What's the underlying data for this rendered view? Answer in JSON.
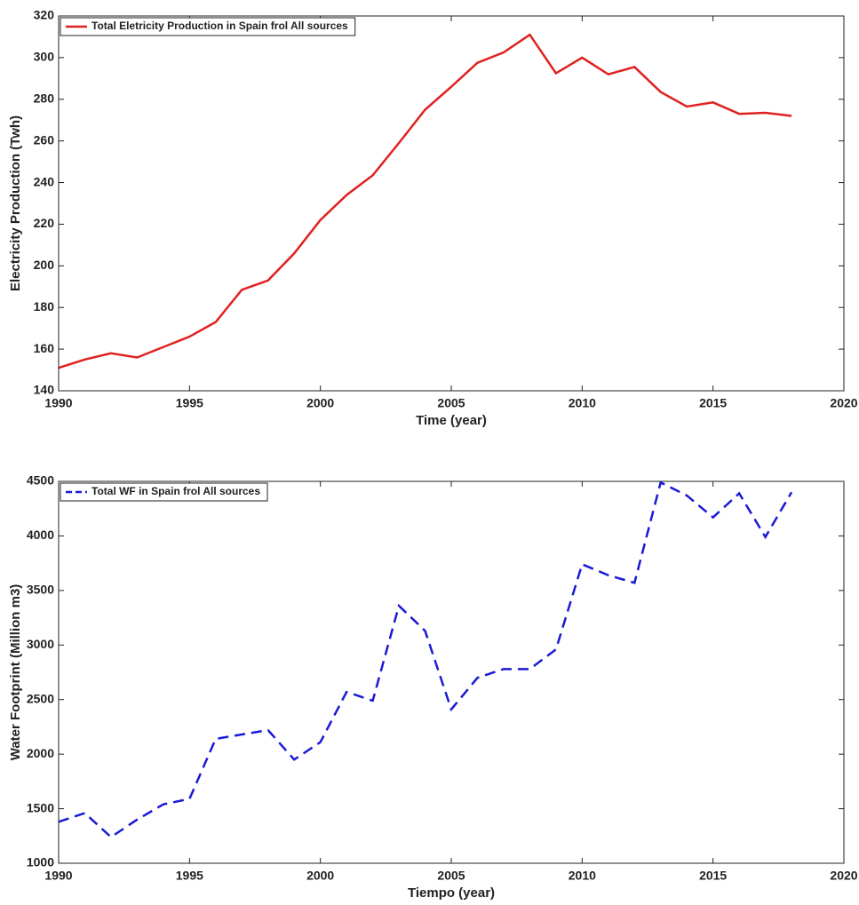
{
  "chart_data": [
    {
      "type": "line",
      "x": [
        1990,
        1991,
        1992,
        1993,
        1994,
        1995,
        1996,
        1997,
        1998,
        1999,
        2000,
        2001,
        2002,
        2003,
        2004,
        2005,
        2006,
        2007,
        2008,
        2009,
        2010,
        2011,
        2012,
        2013,
        2014,
        2015,
        2016,
        2017,
        2018
      ],
      "series": [
        {
          "name": "Total Eletricity Production in Spain frol All sources",
          "color": "#e02020",
          "dash": "solid",
          "values": [
            151,
            155,
            158,
            156,
            161,
            166,
            173,
            188.5,
            193,
            206,
            222,
            234,
            243.5,
            259,
            275,
            286,
            297.5,
            302.5,
            311,
            292.5,
            300,
            292,
            295.5,
            283.5,
            276.5,
            278.5,
            273,
            273.5,
            272
          ]
        }
      ],
      "x_label": "Time (year)",
      "y_label": "Electricity Production (Twh)",
      "xlim": [
        1990,
        2020
      ],
      "xticks": [
        1990,
        1995,
        2000,
        2005,
        2010,
        2015,
        2020
      ],
      "ylim": [
        140,
        320
      ],
      "yticks": [
        140,
        160,
        180,
        200,
        220,
        240,
        260,
        280,
        300,
        320
      ],
      "legend": "top-left"
    },
    {
      "type": "line",
      "x": [
        1990,
        1991,
        1992,
        1993,
        1994,
        1995,
        1996,
        1997,
        1998,
        1999,
        2000,
        2001,
        2002,
        2003,
        2004,
        2005,
        2006,
        2007,
        2008,
        2009,
        2010,
        2011,
        2012,
        2013,
        2014,
        2015,
        2016,
        2017,
        2018
      ],
      "series": [
        {
          "name": "Total WF in Spain frol All sources",
          "color": "#1a1ad6",
          "dash": "dashed",
          "values": [
            1380,
            1460,
            1240,
            1400,
            1540,
            1590,
            2140,
            2180,
            2220,
            1950,
            2110,
            2570,
            2490,
            3360,
            3130,
            2410,
            2700,
            2780,
            2780,
            2960,
            3740,
            3640,
            3570,
            4490,
            4370,
            4170,
            4390,
            3990,
            4400
          ]
        }
      ],
      "x_label": "Tiempo (year)",
      "y_label": "Water Footprint (Million m3)",
      "xlim": [
        1990,
        2020
      ],
      "xticks": [
        1990,
        1995,
        2000,
        2005,
        2010,
        2015,
        2020
      ],
      "ylim": [
        1000,
        4500
      ],
      "yticks": [
        1000,
        1500,
        2000,
        2500,
        3000,
        3500,
        4000,
        4500
      ],
      "legend": "top-left"
    }
  ]
}
